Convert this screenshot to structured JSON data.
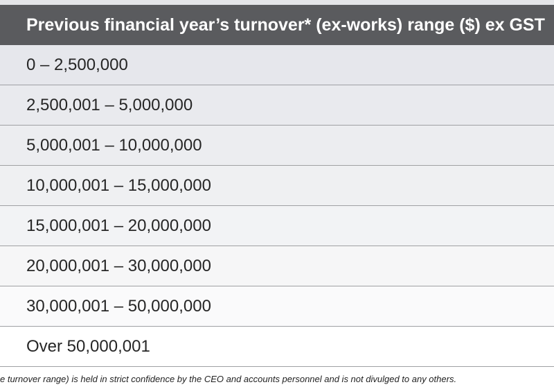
{
  "table": {
    "header": "Previous financial year’s turnover* (ex-works) range ($) ex GST",
    "rows": [
      "0 – 2,500,000",
      "2,500,001 – 5,000,000",
      "5,000,001 – 10,000,000",
      "10,000,001 – 15,000,000",
      "15,000,001 – 20,000,000",
      "20,000,001 – 30,000,000",
      "30,000,001 – 50,000,000",
      "Over 50,000,001"
    ],
    "row_backgrounds": [
      "#e6e7ec",
      "#e9eaee",
      "#ecedf0",
      "#eff0f2",
      "#f2f3f5",
      "#f6f6f7",
      "#fafafb",
      "#ffffff"
    ]
  },
  "footnote": "e turnover range) is held in strict confidence by the CEO and accounts personnel and is not divulged to any others."
}
